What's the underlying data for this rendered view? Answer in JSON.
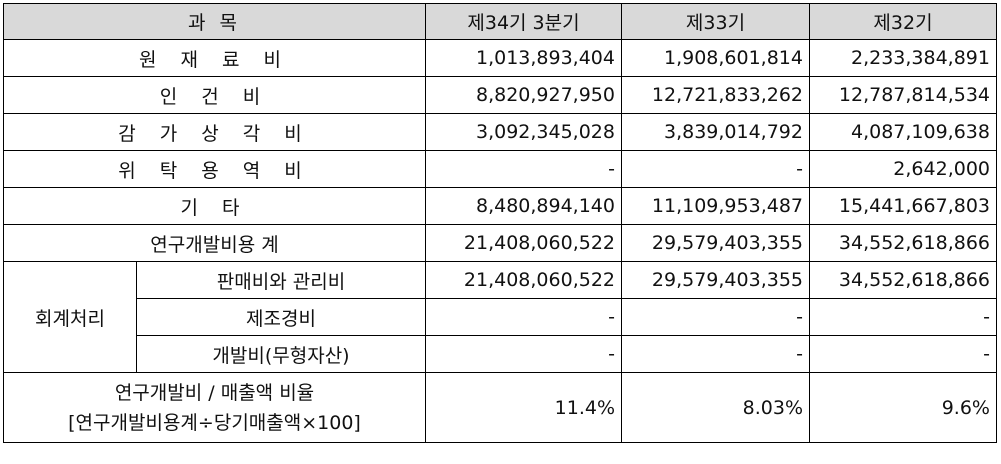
{
  "header": {
    "subject": "과 목",
    "col1": "제34기 3분기",
    "col2": "제33기",
    "col3": "제32기"
  },
  "rows": [
    {
      "label": "원 재 료 비",
      "v1": "1,013,893,404",
      "v2": "1,908,601,814",
      "v3": "2,233,384,891"
    },
    {
      "label": "인 건 비",
      "v1": "8,820,927,950",
      "v2": "12,721,833,262",
      "v3": "12,787,814,534"
    },
    {
      "label": "감 가 상 각 비",
      "v1": "3,092,345,028",
      "v2": "3,839,014,792",
      "v3": "4,087,109,638"
    },
    {
      "label": "위 탁 용 역 비",
      "v1": "-",
      "v2": "-",
      "v3": "2,642,000"
    },
    {
      "label": "기 타",
      "v1": "8,480,894,140",
      "v2": "11,109,953,487",
      "v3": "15,441,667,803"
    },
    {
      "label": "연구개발비용 계",
      "v1": "21,408,060,522",
      "v2": "29,579,403,355",
      "v3": "34,552,618,866"
    }
  ],
  "accounting": {
    "group_label": "회계처리",
    "items": [
      {
        "label": "판매비와 관리비",
        "v1": "21,408,060,522",
        "v2": "29,579,403,355",
        "v3": "34,552,618,866"
      },
      {
        "label": "제조경비",
        "v1": "-",
        "v2": "-",
        "v3": "-"
      },
      {
        "label": "개발비(무형자산)",
        "v1": "-",
        "v2": "-",
        "v3": "-"
      }
    ]
  },
  "ratio": {
    "label_line1": "연구개발비 / 매출액 비율",
    "label_line2": "[연구개발비용계÷당기매출액×100]",
    "v1": "11.4%",
    "v2": "8.03%",
    "v3": "9.6%"
  }
}
